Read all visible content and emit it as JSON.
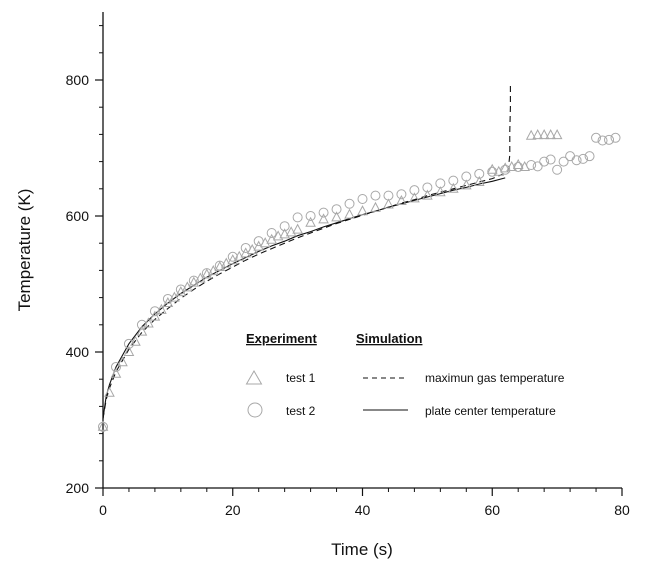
{
  "chart_data": {
    "type": "scatter",
    "title": "",
    "xlabel": "Time (s)",
    "ylabel": "Temperature (K)",
    "xlim": [
      0,
      80
    ],
    "ylim": [
      200,
      900
    ],
    "xticks": [
      0,
      20,
      40,
      60,
      80
    ],
    "yticks": [
      200,
      400,
      600,
      800
    ],
    "x_minor_step": 4,
    "y_minor_step": 40,
    "grid": false,
    "legend_position": "center-right",
    "legend_headers": {
      "experiment": "Experiment",
      "simulation": "Simulation"
    },
    "series": [
      {
        "name": "test 1",
        "kind": "scatter",
        "marker": "triangle",
        "points": [
          [
            0,
            290
          ],
          [
            1,
            340
          ],
          [
            2,
            368
          ],
          [
            3,
            385
          ],
          [
            4,
            400
          ],
          [
            5,
            415
          ],
          [
            6,
            430
          ],
          [
            7,
            442
          ],
          [
            8,
            452
          ],
          [
            9,
            462
          ],
          [
            10,
            472
          ],
          [
            11,
            480
          ],
          [
            12,
            488
          ],
          [
            13,
            495
          ],
          [
            14,
            502
          ],
          [
            15,
            508
          ],
          [
            16,
            514
          ],
          [
            17,
            519
          ],
          [
            18,
            525
          ],
          [
            19,
            530
          ],
          [
            20,
            535
          ],
          [
            21,
            540
          ],
          [
            22,
            545
          ],
          [
            23,
            550
          ],
          [
            24,
            555
          ],
          [
            25,
            560
          ],
          [
            26,
            565
          ],
          [
            27,
            570
          ],
          [
            28,
            573
          ],
          [
            29,
            576
          ],
          [
            30,
            580
          ],
          [
            32,
            590
          ],
          [
            34,
            595
          ],
          [
            36,
            598
          ],
          [
            38,
            602
          ],
          [
            40,
            607
          ],
          [
            42,
            612
          ],
          [
            44,
            617
          ],
          [
            46,
            622
          ],
          [
            48,
            626
          ],
          [
            50,
            630
          ],
          [
            52,
            635
          ],
          [
            54,
            640
          ],
          [
            56,
            645
          ],
          [
            58,
            650
          ],
          [
            60,
            668
          ],
          [
            61,
            665
          ],
          [
            62,
            670
          ],
          [
            63,
            672
          ],
          [
            64,
            675
          ],
          [
            65,
            672
          ],
          [
            66,
            718
          ],
          [
            67,
            719
          ],
          [
            68,
            719
          ],
          [
            69,
            719
          ],
          [
            70,
            719
          ]
        ]
      },
      {
        "name": "test 2",
        "kind": "scatter",
        "marker": "circle",
        "points": [
          [
            0,
            290
          ],
          [
            2,
            378
          ],
          [
            4,
            412
          ],
          [
            6,
            440
          ],
          [
            8,
            460
          ],
          [
            10,
            478
          ],
          [
            12,
            492
          ],
          [
            14,
            505
          ],
          [
            16,
            516
          ],
          [
            18,
            527
          ],
          [
            20,
            540
          ],
          [
            22,
            553
          ],
          [
            24,
            563
          ],
          [
            26,
            575
          ],
          [
            28,
            585
          ],
          [
            30,
            598
          ],
          [
            32,
            600
          ],
          [
            34,
            605
          ],
          [
            36,
            610
          ],
          [
            38,
            618
          ],
          [
            40,
            625
          ],
          [
            42,
            630
          ],
          [
            44,
            630
          ],
          [
            46,
            632
          ],
          [
            48,
            638
          ],
          [
            50,
            642
          ],
          [
            52,
            648
          ],
          [
            54,
            652
          ],
          [
            56,
            658
          ],
          [
            58,
            662
          ],
          [
            60,
            665
          ],
          [
            62,
            668
          ],
          [
            64,
            672
          ],
          [
            66,
            675
          ],
          [
            67,
            673
          ],
          [
            68,
            680
          ],
          [
            69,
            683
          ],
          [
            70,
            668
          ],
          [
            71,
            680
          ],
          [
            72,
            688
          ],
          [
            73,
            682
          ],
          [
            74,
            684
          ],
          [
            75,
            688
          ],
          [
            76,
            715
          ],
          [
            77,
            711
          ],
          [
            78,
            712
          ],
          [
            79,
            715
          ]
        ]
      },
      {
        "name": "maximun gas temperature",
        "kind": "line",
        "dash": "dashed",
        "points": [
          [
            0,
            302
          ],
          [
            0.5,
            330
          ],
          [
            1,
            347
          ],
          [
            2,
            371
          ],
          [
            4,
            404
          ],
          [
            6,
            429
          ],
          [
            8,
            448
          ],
          [
            10,
            464
          ],
          [
            12,
            479
          ],
          [
            14,
            492
          ],
          [
            16,
            504
          ],
          [
            18,
            515
          ],
          [
            20,
            525
          ],
          [
            22,
            535
          ],
          [
            24,
            544
          ],
          [
            26,
            552
          ],
          [
            28,
            560
          ],
          [
            30,
            568
          ],
          [
            32,
            575
          ],
          [
            34,
            582
          ],
          [
            36,
            589
          ],
          [
            38,
            595
          ],
          [
            40,
            601
          ],
          [
            42,
            607
          ],
          [
            44,
            613
          ],
          [
            46,
            619
          ],
          [
            48,
            624
          ],
          [
            50,
            630
          ],
          [
            52,
            635
          ],
          [
            54,
            640
          ],
          [
            56,
            645
          ],
          [
            58,
            650
          ],
          [
            60,
            655
          ],
          [
            62,
            663
          ],
          [
            62.6,
            670
          ],
          [
            62.6,
            680
          ],
          [
            62.7,
            690
          ],
          [
            62.7,
            725
          ],
          [
            62.8,
            760
          ],
          [
            62.8,
            795
          ]
        ]
      },
      {
        "name": "plate center temperature",
        "kind": "line",
        "dash": "solid",
        "points": [
          [
            0,
            302
          ],
          [
            0.5,
            335
          ],
          [
            1,
            352
          ],
          [
            2,
            378
          ],
          [
            4,
            412
          ],
          [
            6,
            437
          ],
          [
            8,
            456
          ],
          [
            10,
            472
          ],
          [
            12,
            486
          ],
          [
            14,
            498
          ],
          [
            16,
            510
          ],
          [
            18,
            520
          ],
          [
            20,
            530
          ],
          [
            22,
            539
          ],
          [
            24,
            548
          ],
          [
            26,
            556
          ],
          [
            28,
            563
          ],
          [
            30,
            571
          ],
          [
            32,
            577
          ],
          [
            34,
            584
          ],
          [
            36,
            590
          ],
          [
            38,
            596
          ],
          [
            40,
            602
          ],
          [
            42,
            607
          ],
          [
            44,
            613
          ],
          [
            46,
            618
          ],
          [
            48,
            623
          ],
          [
            50,
            628
          ],
          [
            52,
            633
          ],
          [
            54,
            638
          ],
          [
            56,
            642
          ],
          [
            58,
            647
          ],
          [
            60,
            651
          ],
          [
            62,
            656
          ]
        ]
      }
    ]
  }
}
